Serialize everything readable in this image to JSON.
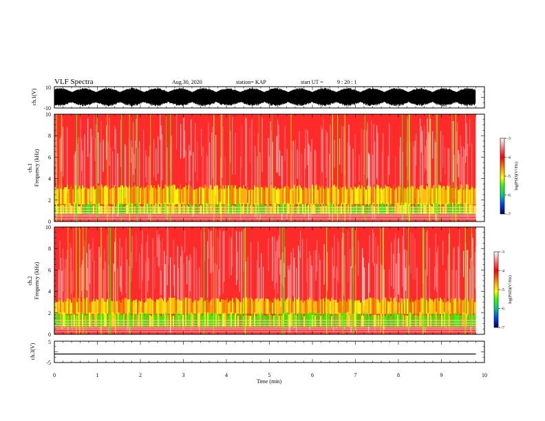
{
  "header": {
    "title": "VLF Spectra",
    "date": "Aug.30, 2020",
    "station": "station= KAP",
    "start_label": "start  UT  =",
    "start_time": "9 : 20 : 1"
  },
  "chart_data": {
    "type": "heatmap",
    "x_axis": {
      "label": "Time  (min)",
      "range": [
        0,
        10
      ],
      "ticks": [
        "0",
        "1",
        "2",
        "3",
        "4",
        "5",
        "6",
        "7",
        "8",
        "9",
        "10"
      ],
      "data_extent_min": 9.8
    },
    "panels": [
      {
        "id": "ch1-waveform",
        "type": "line",
        "ylabel": "ch.1(V)",
        "ylim": [
          -10,
          10
        ],
        "yticks": [
          "10",
          "-10"
        ],
        "amplitude_band": [
          -9,
          9
        ],
        "color": "#000000"
      },
      {
        "id": "ch1-spectrogram",
        "type": "heatmap",
        "ylabel_channel": "ch.1",
        "ylabel": "Frequency  (kHz)",
        "ylim": [
          0,
          10
        ],
        "yticks": [
          "0",
          "2",
          "4",
          "6",
          "8",
          "10"
        ],
        "band_limits_khz": {
          "green_top": 1.6,
          "yellow_top": 3.2
        },
        "colorbar": {
          "label": "log(PSD)(V²/Hz)",
          "range": [
            -7,
            -3
          ],
          "ticks": [
            "-3",
            "-4",
            "-5",
            "-6",
            "-7"
          ]
        }
      },
      {
        "id": "ch2-spectrogram",
        "type": "heatmap",
        "ylabel_channel": "ch.2",
        "ylabel": "Frequency  (kHz)",
        "ylim": [
          0,
          10
        ],
        "yticks": [
          "0",
          "2",
          "4",
          "6",
          "8",
          "10"
        ],
        "band_limits_khz": {
          "green_top": 1.9,
          "yellow_top": 3.2
        },
        "colorbar": {
          "label": "log(PSD)(V²/Hz)",
          "range": [
            -7,
            -3
          ],
          "ticks": [
            "-3",
            "-4",
            "-5",
            "-6",
            "-7"
          ]
        }
      },
      {
        "id": "ch3-waveform",
        "type": "line",
        "ylabel": "ch.3(V)",
        "ylim": [
          -5,
          5
        ],
        "yticks": [
          "5",
          "-5"
        ],
        "amplitude_band": [
          -1.2,
          -0.8
        ],
        "color": "#000000"
      }
    ],
    "colormap": [
      "#000080",
      "#0044ff",
      "#00cc66",
      "#33ff00",
      "#ffff00",
      "#ff8800",
      "#ff0000",
      "#ffffff"
    ]
  }
}
